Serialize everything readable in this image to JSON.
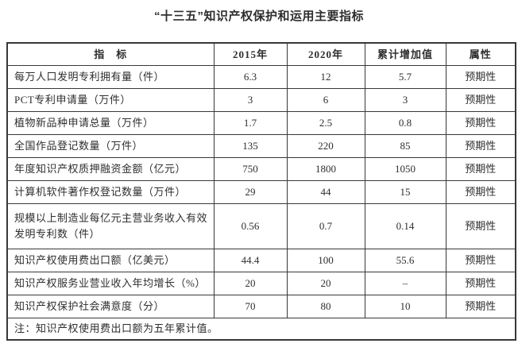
{
  "title": "“十三五”知识产权保护和运用主要指标",
  "table": {
    "headers": [
      "指　标",
      "2015年",
      "2020年",
      "累计增加值",
      "属性"
    ],
    "rows": [
      {
        "indicator": "每万人口发明专利拥有量（件）",
        "y2015": "6.3",
        "y2020": "12",
        "increase": "5.7",
        "attribute": "预期性",
        "tall": false
      },
      {
        "indicator": "PCT专利申请量（万件）",
        "y2015": "3",
        "y2020": "6",
        "increase": "3",
        "attribute": "预期性",
        "tall": false
      },
      {
        "indicator": "植物新品种申请总量（万件）",
        "y2015": "1.7",
        "y2020": "2.5",
        "increase": "0.8",
        "attribute": "预期性",
        "tall": false
      },
      {
        "indicator": "全国作品登记数量（万件）",
        "y2015": "135",
        "y2020": "220",
        "increase": "85",
        "attribute": "预期性",
        "tall": false
      },
      {
        "indicator": "年度知识产权质押融资金额（亿元）",
        "y2015": "750",
        "y2020": "1800",
        "increase": "1050",
        "attribute": "预期性",
        "tall": false
      },
      {
        "indicator": "计算机软件著作权登记数量（万件）",
        "y2015": "29",
        "y2020": "44",
        "increase": "15",
        "attribute": "预期性",
        "tall": false
      },
      {
        "indicator": "规模以上制造业每亿元主营业务收入有效发明专利数（件）",
        "y2015": "0.56",
        "y2020": "0.7",
        "increase": "0.14",
        "attribute": "预期性",
        "tall": true
      },
      {
        "indicator": "知识产权使用费出口额（亿美元）",
        "y2015": "44.4",
        "y2020": "100",
        "increase": "55.6",
        "attribute": "预期性",
        "tall": false
      },
      {
        "indicator": "知识产权服务业营业收入年均增长（%）",
        "y2015": "20",
        "y2020": "20",
        "increase": "–",
        "attribute": "预期性",
        "tall": false
      },
      {
        "indicator": "知识产权保护社会满意度（分）",
        "y2015": "70",
        "y2020": "80",
        "increase": "10",
        "attribute": "预期性",
        "tall": false
      }
    ],
    "note": "注：知识产权使用费出口额为五年累计值。"
  },
  "colors": {
    "text": "#2e2e2e",
    "border": "#383838",
    "background": "#ffffff"
  }
}
